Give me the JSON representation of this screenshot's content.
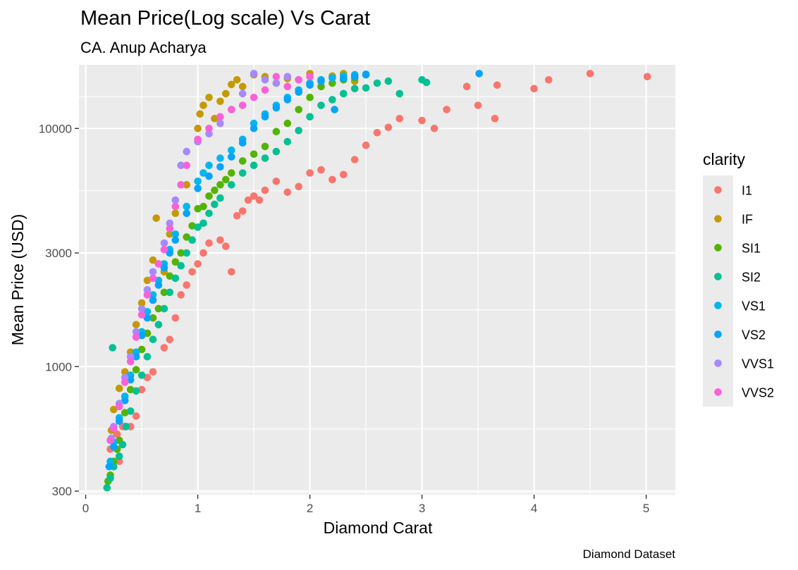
{
  "chart_data": {
    "type": "scatter",
    "title": "Mean Price(Log scale) Vs Carat",
    "subtitle": "CA. Anup Acharya",
    "xlabel": "Diamond Carat",
    "ylabel": "Mean Price (USD)",
    "caption": "Diamond Dataset",
    "xlim": [
      -0.06,
      5.26
    ],
    "ylim": [
      290,
      18500
    ],
    "yscale": "log10",
    "x_ticks": [
      0,
      1,
      2,
      3,
      4,
      5
    ],
    "x_tick_labels": [
      "0",
      "1",
      "2",
      "3",
      "4",
      "5"
    ],
    "y_ticks": [
      300,
      1000,
      3000,
      10000
    ],
    "y_tick_labels": [
      "300",
      "1000",
      "3000",
      "10000"
    ],
    "grid": true,
    "legend": {
      "title": "clarity",
      "position": "right"
    },
    "series": [
      {
        "name": "I1",
        "color": "#F8766D",
        "points": [
          [
            0.22,
            450
          ],
          [
            0.25,
            480
          ],
          [
            0.28,
            520
          ],
          [
            0.3,
            400
          ],
          [
            0.33,
            560
          ],
          [
            0.35,
            560
          ],
          [
            0.4,
            560
          ],
          [
            0.45,
            620
          ],
          [
            0.5,
            800
          ],
          [
            0.55,
            900
          ],
          [
            0.6,
            950
          ],
          [
            0.7,
            1200
          ],
          [
            0.75,
            1300
          ],
          [
            0.8,
            1600
          ],
          [
            0.85,
            2000
          ],
          [
            0.9,
            2200
          ],
          [
            0.95,
            2500
          ],
          [
            1.0,
            2700
          ],
          [
            1.05,
            3000
          ],
          [
            1.1,
            3300
          ],
          [
            1.2,
            3400
          ],
          [
            1.25,
            3200
          ],
          [
            1.3,
            2500
          ],
          [
            1.35,
            4300
          ],
          [
            1.4,
            4500
          ],
          [
            1.45,
            5000
          ],
          [
            1.5,
            5200
          ],
          [
            1.55,
            5000
          ],
          [
            1.6,
            5500
          ],
          [
            1.7,
            6000
          ],
          [
            1.8,
            5400
          ],
          [
            1.9,
            5700
          ],
          [
            2.0,
            6500
          ],
          [
            2.1,
            6700
          ],
          [
            2.2,
            6100
          ],
          [
            2.3,
            6400
          ],
          [
            2.4,
            7400
          ],
          [
            2.5,
            8500
          ],
          [
            2.6,
            9600
          ],
          [
            2.7,
            10100
          ],
          [
            2.8,
            11000
          ],
          [
            3.0,
            10800
          ],
          [
            3.11,
            10000
          ],
          [
            3.22,
            12000
          ],
          [
            3.4,
            15000
          ],
          [
            3.5,
            12500
          ],
          [
            3.65,
            11000
          ],
          [
            3.67,
            15200
          ],
          [
            4.0,
            14700
          ],
          [
            4.13,
            16000
          ],
          [
            4.5,
            17000
          ],
          [
            5.01,
            16500
          ]
        ]
      },
      {
        "name": "IF",
        "color": "#C49A00",
        "points": [
          [
            0.23,
            540
          ],
          [
            0.25,
            660
          ],
          [
            0.3,
            810
          ],
          [
            0.35,
            950
          ],
          [
            0.4,
            1150
          ],
          [
            0.45,
            1500
          ],
          [
            0.5,
            1850
          ],
          [
            0.55,
            2300
          ],
          [
            0.6,
            2800
          ],
          [
            0.63,
            4200
          ],
          [
            0.7,
            2500
          ],
          [
            0.75,
            3600
          ],
          [
            0.8,
            4400
          ],
          [
            0.9,
            5800
          ],
          [
            1.0,
            10000
          ],
          [
            1.02,
            11500
          ],
          [
            1.05,
            12500
          ],
          [
            1.1,
            13500
          ],
          [
            1.15,
            11000
          ],
          [
            1.2,
            13000
          ],
          [
            1.25,
            14000
          ],
          [
            1.3,
            15300
          ],
          [
            1.35,
            16000
          ],
          [
            1.4,
            15000
          ],
          [
            1.5,
            16800
          ],
          [
            1.6,
            16500
          ],
          [
            1.7,
            15500
          ],
          [
            1.8,
            16200
          ],
          [
            1.9,
            14500
          ],
          [
            2.0,
            17000
          ],
          [
            2.1,
            16000
          ],
          [
            2.2,
            16600
          ],
          [
            2.3,
            17000
          ],
          [
            2.4,
            15800
          ]
        ]
      },
      {
        "name": "SI1",
        "color": "#53B400",
        "points": [
          [
            0.2,
            330
          ],
          [
            0.22,
            350
          ],
          [
            0.25,
            400
          ],
          [
            0.28,
            450
          ],
          [
            0.3,
            490
          ],
          [
            0.35,
            640
          ],
          [
            0.4,
            800
          ],
          [
            0.45,
            970
          ],
          [
            0.5,
            1180
          ],
          [
            0.55,
            1380
          ],
          [
            0.6,
            1600
          ],
          [
            0.65,
            1750
          ],
          [
            0.7,
            2050
          ],
          [
            0.75,
            2400
          ],
          [
            0.8,
            2750
          ],
          [
            0.85,
            3000
          ],
          [
            0.9,
            3500
          ],
          [
            0.95,
            3900
          ],
          [
            1.0,
            4600
          ],
          [
            1.05,
            4700
          ],
          [
            1.1,
            5200
          ],
          [
            1.15,
            5500
          ],
          [
            1.2,
            5800
          ],
          [
            1.25,
            6100
          ],
          [
            1.3,
            6500
          ],
          [
            1.4,
            7300
          ],
          [
            1.5,
            7800
          ],
          [
            1.6,
            8400
          ],
          [
            1.7,
            9700
          ],
          [
            1.8,
            10500
          ],
          [
            1.9,
            12000
          ],
          [
            2.0,
            13500
          ],
          [
            2.1,
            15000
          ],
          [
            2.2,
            15500
          ],
          [
            2.3,
            16000
          ],
          [
            2.4,
            16300
          ],
          [
            2.5,
            16800
          ]
        ]
      },
      {
        "name": "SI2",
        "color": "#00C094",
        "points": [
          [
            0.19,
            310
          ],
          [
            0.22,
            340
          ],
          [
            0.24,
            1200
          ],
          [
            0.25,
            380
          ],
          [
            0.3,
            420
          ],
          [
            0.33,
            470
          ],
          [
            0.36,
            560
          ],
          [
            0.4,
            650
          ],
          [
            0.45,
            790
          ],
          [
            0.5,
            920
          ],
          [
            0.55,
            1100
          ],
          [
            0.6,
            1300
          ],
          [
            0.65,
            1500
          ],
          [
            0.7,
            1750
          ],
          [
            0.75,
            2050
          ],
          [
            0.8,
            2350
          ],
          [
            0.85,
            2650
          ],
          [
            0.9,
            3000
          ],
          [
            0.95,
            3400
          ],
          [
            1.0,
            3850
          ],
          [
            1.05,
            4000
          ],
          [
            1.1,
            4400
          ],
          [
            1.15,
            4800
          ],
          [
            1.2,
            5100
          ],
          [
            1.3,
            5800
          ],
          [
            1.4,
            6500
          ],
          [
            1.5,
            7000
          ],
          [
            1.6,
            7500
          ],
          [
            1.7,
            8000
          ],
          [
            1.8,
            8800
          ],
          [
            1.9,
            9800
          ],
          [
            2.0,
            11200
          ],
          [
            2.1,
            12500
          ],
          [
            2.2,
            13200
          ],
          [
            2.3,
            14000
          ],
          [
            2.4,
            14700
          ],
          [
            2.5,
            14800
          ],
          [
            2.6,
            15500
          ],
          [
            2.7,
            15800
          ],
          [
            2.8,
            14000
          ],
          [
            3.0,
            16000
          ],
          [
            3.04,
            15600
          ]
        ]
      },
      {
        "name": "VS1",
        "color": "#00B6EB",
        "points": [
          [
            0.22,
            400
          ],
          [
            0.25,
            480
          ],
          [
            0.3,
            610
          ],
          [
            0.35,
            750
          ],
          [
            0.4,
            920
          ],
          [
            0.45,
            1150
          ],
          [
            0.5,
            1400
          ],
          [
            0.55,
            1700
          ],
          [
            0.6,
            2000
          ],
          [
            0.65,
            2300
          ],
          [
            0.7,
            2700
          ],
          [
            0.75,
            3100
          ],
          [
            0.8,
            3600
          ],
          [
            0.9,
            4700
          ],
          [
            1.0,
            6000
          ],
          [
            1.05,
            6500
          ],
          [
            1.1,
            7000
          ],
          [
            1.2,
            7500
          ],
          [
            1.3,
            8100
          ],
          [
            1.4,
            9000
          ],
          [
            1.5,
            10500
          ],
          [
            1.6,
            11500
          ],
          [
            1.7,
            12500
          ],
          [
            1.8,
            13500
          ],
          [
            1.9,
            14500
          ],
          [
            2.0,
            15500
          ],
          [
            2.1,
            16000
          ],
          [
            2.2,
            16300
          ],
          [
            2.3,
            16600
          ],
          [
            2.4,
            16800
          ],
          [
            2.5,
            16900
          ]
        ]
      },
      {
        "name": "VS2",
        "color": "#06A4FF",
        "points": [
          [
            0.21,
            380
          ],
          [
            0.25,
            460
          ],
          [
            0.3,
            590
          ],
          [
            0.35,
            720
          ],
          [
            0.4,
            880
          ],
          [
            0.45,
            1100
          ],
          [
            0.5,
            1350
          ],
          [
            0.55,
            1600
          ],
          [
            0.6,
            1900
          ],
          [
            0.65,
            2200
          ],
          [
            0.7,
            2600
          ],
          [
            0.75,
            3000
          ],
          [
            0.8,
            3400
          ],
          [
            0.9,
            4400
          ],
          [
            1.0,
            5600
          ],
          [
            1.1,
            6300
          ],
          [
            1.2,
            6900
          ],
          [
            1.3,
            7600
          ],
          [
            1.4,
            8700
          ],
          [
            1.5,
            10000
          ],
          [
            1.6,
            11200
          ],
          [
            1.7,
            12200
          ],
          [
            1.8,
            13200
          ],
          [
            1.9,
            14200
          ],
          [
            2.0,
            15200
          ],
          [
            2.1,
            15800
          ],
          [
            2.22,
            12000
          ],
          [
            2.3,
            16200
          ],
          [
            2.4,
            16500
          ],
          [
            2.5,
            16800
          ],
          [
            3.51,
            17000
          ]
        ]
      },
      {
        "name": "VVS1",
        "color": "#A58AFF",
        "points": [
          [
            0.23,
            500
          ],
          [
            0.25,
            560
          ],
          [
            0.3,
            700
          ],
          [
            0.35,
            900
          ],
          [
            0.4,
            1100
          ],
          [
            0.45,
            1400
          ],
          [
            0.5,
            1750
          ],
          [
            0.55,
            2100
          ],
          [
            0.6,
            2500
          ],
          [
            0.65,
            2700
          ],
          [
            0.7,
            3300
          ],
          [
            0.75,
            4000
          ],
          [
            0.8,
            5000
          ],
          [
            0.85,
            7000
          ],
          [
            0.9,
            8000
          ],
          [
            1.0,
            8800
          ],
          [
            1.1,
            9500
          ],
          [
            1.2,
            10500
          ],
          [
            1.3,
            12000
          ],
          [
            1.4,
            14000
          ],
          [
            1.5,
            17000
          ],
          [
            1.6,
            16000
          ],
          [
            1.7,
            15500
          ],
          [
            1.8,
            16500
          ],
          [
            1.9,
            16000
          ]
        ]
      },
      {
        "name": "VVS2",
        "color": "#FB61D7",
        "points": [
          [
            0.22,
            490
          ],
          [
            0.25,
            550
          ],
          [
            0.3,
            680
          ],
          [
            0.35,
            860
          ],
          [
            0.4,
            1050
          ],
          [
            0.45,
            1330
          ],
          [
            0.5,
            1650
          ],
          [
            0.55,
            2000
          ],
          [
            0.6,
            2350
          ],
          [
            0.65,
            2700
          ],
          [
            0.7,
            3100
          ],
          [
            0.75,
            3800
          ],
          [
            0.8,
            4700
          ],
          [
            0.85,
            5800
          ],
          [
            0.9,
            7000
          ],
          [
            1.0,
            9000
          ],
          [
            1.1,
            10000
          ],
          [
            1.2,
            11200
          ],
          [
            1.3,
            12000
          ],
          [
            1.4,
            12500
          ],
          [
            1.5,
            13500
          ],
          [
            1.6,
            14500
          ],
          [
            1.7,
            16500
          ],
          [
            1.8,
            15000
          ],
          [
            1.9,
            16000
          ],
          [
            2.0,
            16500
          ]
        ]
      }
    ]
  }
}
